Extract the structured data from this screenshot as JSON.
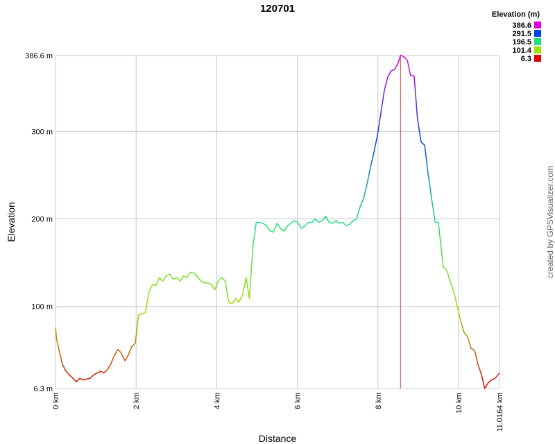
{
  "chart_data": {
    "type": "line",
    "title": "120701",
    "x_label": "Distance",
    "y_label": "Elevation",
    "credit": "created by GPSVisualizer.com",
    "xlim": [
      0,
      11.0164
    ],
    "ylim": [
      6.3,
      386.6
    ],
    "xticks": [
      {
        "value": 0,
        "label": "0 km"
      },
      {
        "value": 2,
        "label": "2 km"
      },
      {
        "value": 4,
        "label": "4 km"
      },
      {
        "value": 6,
        "label": "6 km"
      },
      {
        "value": 8,
        "label": "8 km"
      },
      {
        "value": 10,
        "label": "10 km"
      },
      {
        "value": 11.0164,
        "label": "11.0164 km"
      }
    ],
    "yticks": [
      {
        "value": 6.3,
        "label": "6.3 m"
      },
      {
        "value": 100,
        "label": "100 m"
      },
      {
        "value": 200,
        "label": "200 m"
      },
      {
        "value": 300,
        "label": "300 m"
      },
      {
        "value": 386.6,
        "label": "386.6 m"
      }
    ],
    "grid": true,
    "marker_x": 8.56,
    "marker_color": "#c04040",
    "legend": {
      "title": "Elevation (m)",
      "items": [
        {
          "value": 386.6,
          "color": "#e000e0"
        },
        {
          "value": 291.5,
          "color": "#0040e0"
        },
        {
          "value": 196.5,
          "color": "#20e080"
        },
        {
          "value": 101.4,
          "color": "#a0e000"
        },
        {
          "value": 6.3,
          "color": "#e00000"
        }
      ]
    },
    "x": [
      0,
      0.03,
      0.17,
      0.26,
      0.34,
      0.43,
      0.52,
      0.6,
      0.69,
      0.77,
      0.86,
      0.95,
      1.03,
      1.12,
      1.2,
      1.29,
      1.37,
      1.46,
      1.55,
      1.63,
      1.72,
      1.8,
      1.89,
      1.98,
      2.06,
      2.15,
      2.23,
      2.32,
      2.41,
      2.49,
      2.58,
      2.66,
      2.75,
      2.84,
      2.92,
      3.01,
      3.09,
      3.18,
      3.26,
      3.35,
      3.44,
      3.52,
      3.61,
      3.69,
      3.78,
      3.87,
      3.95,
      4.04,
      4.12,
      4.21,
      4.3,
      4.38,
      4.47,
      4.55,
      4.64,
      4.73,
      4.81,
      4.9,
      4.98,
      5.07,
      5.15,
      5.24,
      5.33,
      5.41,
      5.5,
      5.58,
      5.67,
      5.76,
      5.84,
      5.93,
      6.01,
      6.1,
      6.19,
      6.27,
      6.36,
      6.44,
      6.53,
      6.62,
      6.7,
      6.79,
      6.87,
      6.96,
      7.04,
      7.13,
      7.22,
      7.3,
      7.39,
      7.47,
      7.56,
      7.65,
      7.73,
      7.82,
      7.9,
      7.99,
      8.08,
      8.16,
      8.25,
      8.33,
      8.42,
      8.5,
      8.56,
      8.65,
      8.73,
      8.81,
      8.9,
      8.98,
      9.07,
      9.16,
      9.24,
      9.33,
      9.42,
      9.5,
      9.62,
      9.71,
      9.79,
      9.88,
      9.97,
      10.05,
      10.14,
      10.22,
      10.31,
      10.4,
      10.48,
      10.57,
      10.65,
      10.74,
      10.82,
      10.91,
      11.0164
    ],
    "values": [
      76,
      62,
      34,
      26,
      22,
      18,
      14,
      18,
      16,
      17,
      18,
      22,
      24,
      26,
      24,
      28,
      34,
      44,
      51,
      47,
      38,
      44,
      54,
      58,
      90,
      92,
      93,
      117,
      125,
      124,
      133,
      129,
      135,
      137,
      131,
      133,
      129,
      135,
      133,
      139,
      138,
      134,
      129,
      127,
      127,
      125,
      119,
      129,
      133,
      129,
      105,
      103,
      109,
      105,
      113,
      133,
      109,
      169,
      196,
      196,
      195,
      192,
      186,
      185,
      195,
      189,
      186,
      192,
      195,
      198,
      196,
      189,
      192,
      196,
      196,
      200,
      196,
      198,
      203,
      196,
      195,
      198,
      195,
      196,
      192,
      194,
      198,
      200,
      214,
      224,
      240,
      260,
      276,
      296,
      323,
      347,
      363,
      369,
      371,
      378,
      387,
      385,
      381,
      364,
      363,
      315,
      288,
      284,
      253,
      224,
      196,
      196,
      145,
      141,
      129,
      117,
      100,
      84,
      70,
      66,
      52,
      50,
      34,
      22,
      6.3,
      13,
      16,
      18,
      24
    ]
  }
}
